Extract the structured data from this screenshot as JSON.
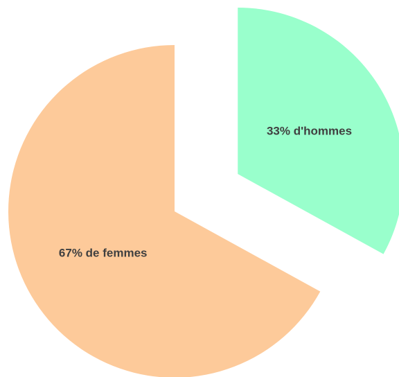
{
  "chart_data": {
    "type": "pie",
    "categories": [
      null,
      null
    ],
    "values": [
      33,
      67
    ],
    "value_labels": [
      "33% d'hommes",
      "67% de femmes"
    ],
    "colors": [
      "#99ffcc",
      "#fdca9a"
    ]
  }
}
